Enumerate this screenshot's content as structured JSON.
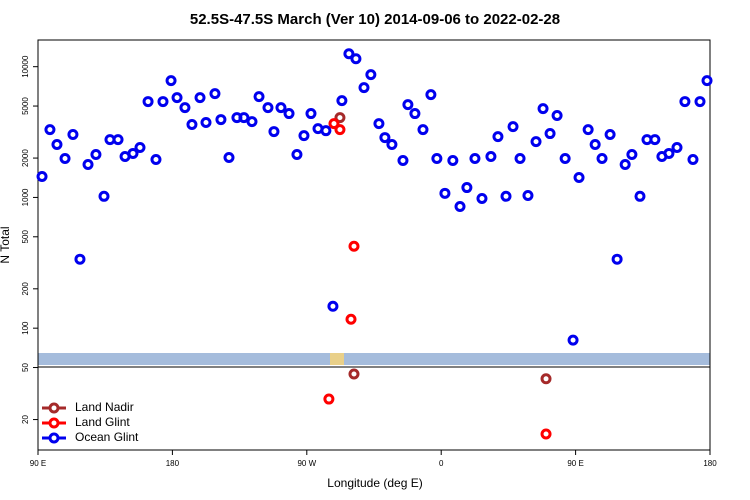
{
  "chart_data": {
    "type": "scatter",
    "title": "52.5S-47.5S March (Ver 10)   2014-09-06 to 2022-02-28",
    "x_label": "Longitude (deg E)",
    "y_label": "N Total",
    "xlim": [
      90,
      540
    ],
    "xticks": [
      {
        "value": 90,
        "label": "90 E"
      },
      180,
      {
        "value": 270,
        "label": "90 W"
      },
      {
        "value": 360,
        "label": "0"
      },
      {
        "value": 450,
        "label": "90 E"
      },
      {
        "value": 540,
        "label": "180"
      }
    ],
    "ylim": [
      11.7,
      16000
    ],
    "log_y": true,
    "yticks": [
      20,
      50,
      100,
      200,
      500,
      1000,
      2000,
      5000,
      10000
    ],
    "legend_position": "lower left",
    "series": [
      {
        "name": "Land Nadir",
        "color": "#a52a2a",
        "x": [
          292.2,
          301.6,
          430.2
        ],
        "values": [
          4080,
          44.6,
          41
        ]
      },
      {
        "name": "Land Glint",
        "color": "#ff0000",
        "x": [
          288.2,
          292.2,
          301.6,
          299.6,
          284.8,
          430.2
        ],
        "values": [
          3670,
          3300,
          423,
          117,
          28.7,
          15.5
        ]
      },
      {
        "name": "Ocean Glint",
        "color": "#0000ee",
        "x": [
          92.7,
          98.0,
          102.7,
          108.1,
          113.4,
          118.1,
          123.5,
          128.8,
          134.2,
          138.2,
          143.6,
          148.3,
          153.6,
          158.3,
          163.7,
          169.0,
          173.7,
          179.1,
          183.1,
          188.4,
          193.1,
          198.5,
          202.5,
          208.5,
          212.5,
          217.9,
          223.2,
          227.9,
          233.3,
          238.0,
          244.0,
          248.0,
          252.7,
          258.1,
          263.4,
          268.1,
          272.8,
          277.5,
          282.8,
          287.5,
          293.5,
          298.2,
          302.9,
          308.3,
          312.9,
          318.3,
          322.3,
          327.0,
          334.4,
          337.7,
          342.4,
          347.8,
          353.1,
          357.1,
          362.5,
          367.8,
          372.6,
          377.2,
          382.6,
          387.3,
          393.3,
          398.0,
          403.4,
          408.1,
          412.8,
          418.1,
          423.5,
          428.2,
          432.9,
          437.6,
          443.0,
          448.3,
          452.3,
          458.4,
          463.1,
          467.7,
          473.1,
          477.8,
          483.2,
          487.7,
          493.1,
          497.8,
          503.1,
          507.8,
          512.5,
          517.9,
          523.2,
          528.6,
          533.3,
          538.0
        ],
        "values": [
          1445,
          3300,
          2540,
          1985,
          3030,
          337,
          1785,
          2130,
          1020,
          2770,
          2770,
          2055,
          2170,
          2410,
          5410,
          1950,
          5410,
          7820,
          5800,
          4860,
          3610,
          5800,
          3740,
          6220,
          3940,
          2020,
          4080,
          4080,
          3800,
          5900,
          4860,
          3190,
          4860,
          4380,
          2130,
          2970,
          4380,
          3360,
          3240,
          147,
          5500,
          12560,
          11510,
          6920,
          8690,
          3670,
          2870,
          2540,
          1915,
          5130,
          4380,
          3300,
          6110,
          1985,
          1075,
          1915,
          853,
          1190,
          1985,
          982,
          2055,
          2920,
          1020,
          3480,
          1985,
          1035,
          2670,
          4780,
          3080,
          4230,
          1985,
          81,
          1420,
          3300,
          2540,
          1985,
          3030,
          337,
          1785,
          2130,
          1020,
          2770,
          2770,
          2055,
          2170,
          2410,
          5410,
          1950,
          5410,
          7820
        ]
      }
    ]
  }
}
